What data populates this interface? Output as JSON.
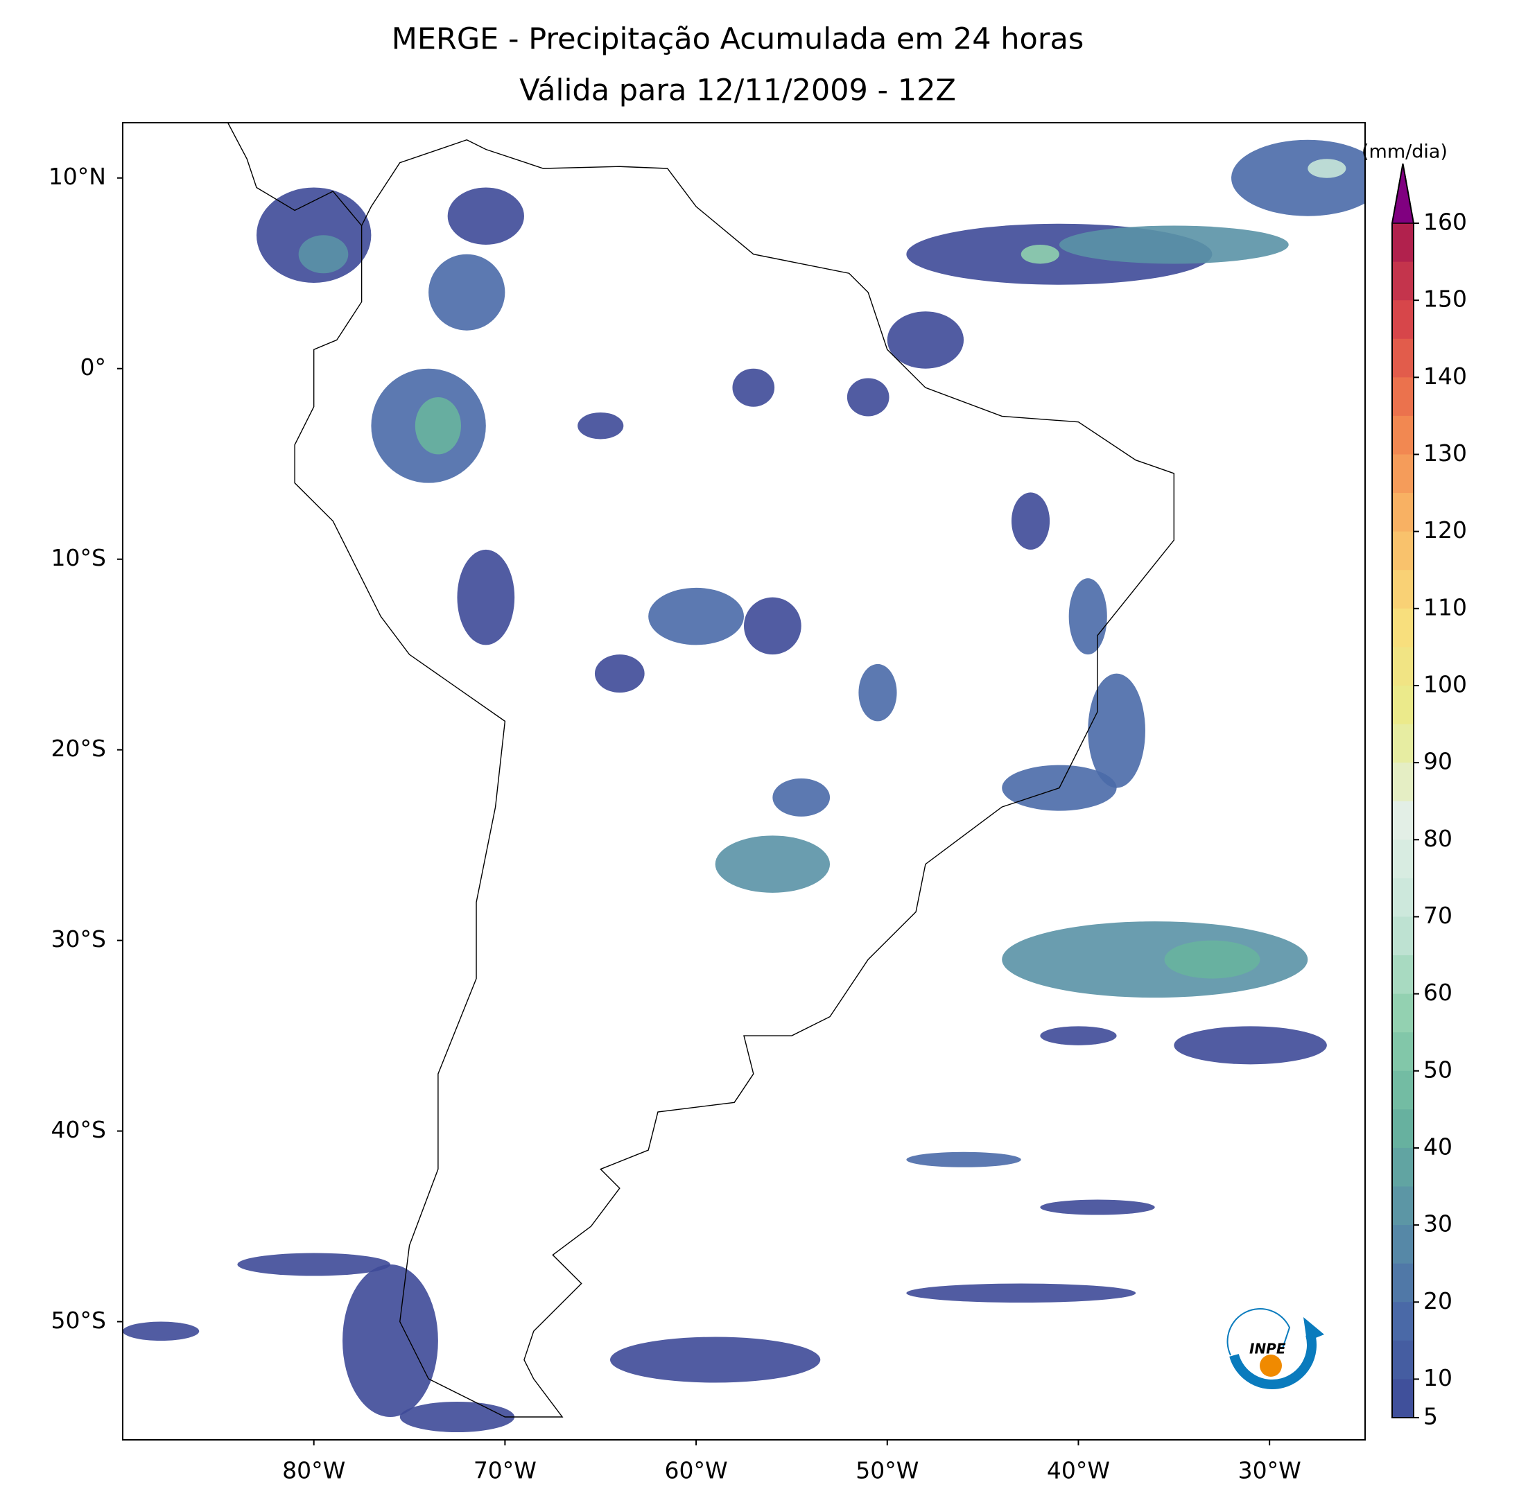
{
  "chart_data": {
    "type": "map",
    "title": "MERGE - Precipitação Acumulada em 24 horas",
    "subtitle": "Válida para 12/11/2009 - 12Z",
    "xlim": [
      -90,
      -25
    ],
    "ylim": [
      -56.2,
      12.9
    ],
    "xticks": [
      {
        "value": -80,
        "label": "80°W"
      },
      {
        "value": -70,
        "label": "70°W"
      },
      {
        "value": -60,
        "label": "60°W"
      },
      {
        "value": -50,
        "label": "50°W"
      },
      {
        "value": -40,
        "label": "40°W"
      },
      {
        "value": -30,
        "label": "30°W"
      }
    ],
    "yticks": [
      {
        "value": 10,
        "label": "10°N"
      },
      {
        "value": 0,
        "label": "0°"
      },
      {
        "value": -10,
        "label": "10°S"
      },
      {
        "value": -20,
        "label": "20°S"
      },
      {
        "value": -30,
        "label": "30°S"
      },
      {
        "value": -40,
        "label": "40°S"
      },
      {
        "value": -50,
        "label": "50°S"
      }
    ],
    "colorbar": {
      "label": "(mm/dia)",
      "lim": [
        5,
        160
      ],
      "ticks": [
        5,
        10,
        20,
        30,
        40,
        50,
        60,
        70,
        80,
        90,
        100,
        110,
        120,
        130,
        140,
        150,
        160
      ],
      "colors": [
        "#3e4a98",
        "#4a6aa8",
        "#5a92a6",
        "#68b49e",
        "#8fd0ae",
        "#c7e6d9",
        "#e3efe6",
        "#e8ec8e",
        "#f9de7c",
        "#f9b665",
        "#f1814e",
        "#d9484a",
        "#a8184e"
      ],
      "extend_color": "#800080"
    },
    "logo_text": "INPE"
  }
}
